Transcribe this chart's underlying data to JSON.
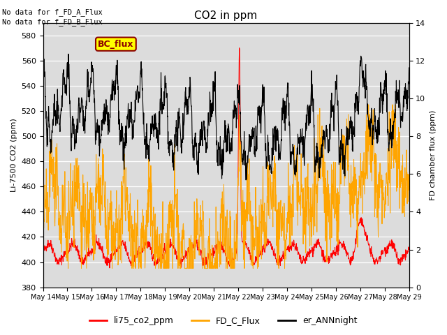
{
  "title": "CO2 in ppm",
  "ylabel_left": "Li-7500 CO2 (ppm)",
  "ylabel_right": "FD chamber flux (ppm)",
  "ylim_left": [
    380,
    590
  ],
  "ylim_right": [
    0,
    14
  ],
  "yticks_left": [
    380,
    400,
    420,
    440,
    460,
    480,
    500,
    520,
    540,
    560,
    580
  ],
  "yticks_right": [
    0,
    2,
    4,
    6,
    8,
    10,
    12,
    14
  ],
  "x_tick_labels": [
    "May 14",
    "May 15",
    "May 16",
    "May 17",
    "May 18",
    "May 19",
    "May 20",
    "May 21",
    "May 22",
    "May 23",
    "May 24",
    "May 25",
    "May 26",
    "May 27",
    "May 28",
    "May 29"
  ],
  "text_top_left": [
    "No data for f_FD_A_Flux",
    "No data for f_FD_B_Flux"
  ],
  "legend_entries": [
    "li75_co2_ppm",
    "FD_C_Flux",
    "er_ANNnight"
  ],
  "legend_colors": [
    "#ff0000",
    "#ffa500",
    "#000000"
  ],
  "bc_flux_label": "BC_flux",
  "bc_flux_color_bg": "#ffff00",
  "bc_flux_color_border": "#8b0000",
  "line_red_color": "#ff0000",
  "line_orange_color": "#ffa500",
  "line_black_color": "#000000",
  "background_color": "#dcdcdc",
  "n_days": 15,
  "pts_per_day": 96,
  "seed": 42
}
